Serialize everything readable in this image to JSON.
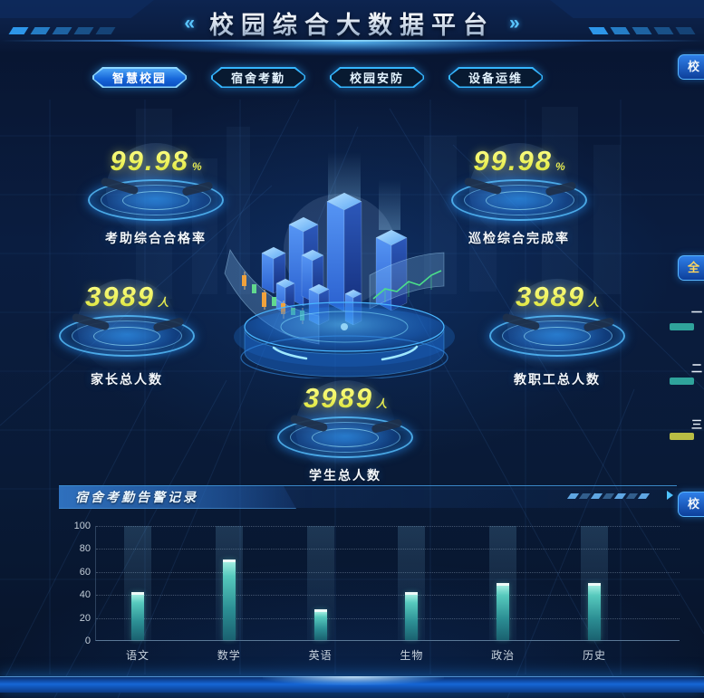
{
  "header": {
    "title": "校园综合大数据平台",
    "left_chevron": "«",
    "right_chevron": "»"
  },
  "tabs": [
    {
      "label": "智慧校园",
      "active": true
    },
    {
      "label": "宿舍考勤",
      "active": false
    },
    {
      "label": "校园安防",
      "active": false
    },
    {
      "label": "设备运维",
      "active": false
    }
  ],
  "stats": [
    {
      "value": "99.98",
      "unit": "%",
      "label": "考助综合合格率"
    },
    {
      "value": "99.98",
      "unit": "%",
      "label": "巡检综合完成率"
    },
    {
      "value": "3989",
      "unit": "人",
      "label": "家长总人数"
    },
    {
      "value": "3989",
      "unit": "人",
      "label": "教职工总人数"
    },
    {
      "value": "3989",
      "unit": "人",
      "label": "学生总人数"
    }
  ],
  "chart_panel": {
    "title": "宿舍考勤告警记录"
  },
  "chart_data": {
    "type": "bar",
    "title": "宿舍考勤告警记录",
    "categories": [
      "语文",
      "数学",
      "英语",
      "生物",
      "政治",
      "历史"
    ],
    "values": [
      42,
      70,
      27,
      42,
      50,
      50
    ],
    "xlabel": "",
    "ylabel": "",
    "ylim": [
      0,
      100
    ],
    "yticks": [
      0,
      20,
      40,
      60,
      80,
      100
    ],
    "grid": "horizontal-dotted",
    "legend": "none",
    "bar_color": "#56c9bd",
    "background_bands": true
  },
  "right_edge_panels": {
    "top_stub": "校",
    "middle_stub": "全",
    "bottom_stub": "校",
    "rank_items": [
      {
        "label": "一",
        "bar_color": "#2fa39b"
      },
      {
        "label": "二",
        "bar_color": "#2fa39b"
      },
      {
        "label": "三",
        "bar_color": "#b9bd44"
      }
    ]
  },
  "colors": {
    "accent_cyan": "#35c1ff",
    "active_tab_blue": "#1767da",
    "stat_number_yellow": "#eef25d",
    "bar_teal": "#56c9bd",
    "gold": "#ffd75e",
    "bottom_bar_blue": "#1566d6"
  }
}
